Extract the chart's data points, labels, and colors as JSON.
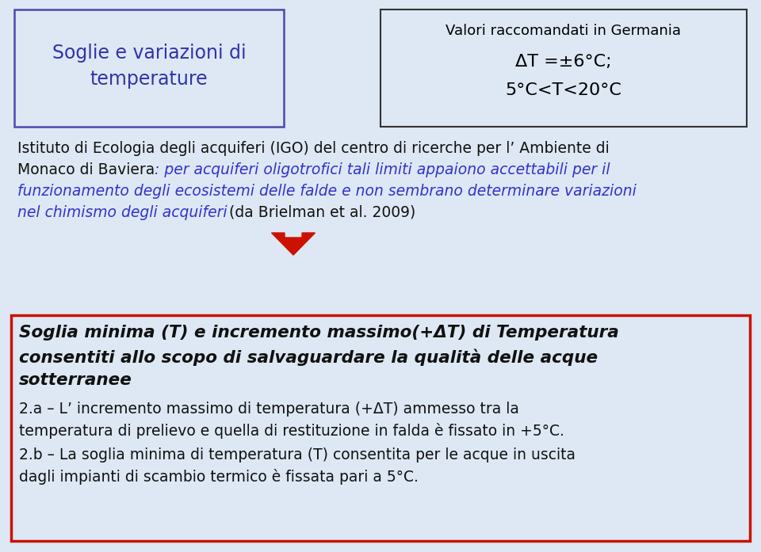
{
  "bg_color": "#dde8f4",
  "title_box_text": "Soglie e variazioni di\ntemperature",
  "title_box_border": "#4a4aaa",
  "title_box_text_color": "#3333aa",
  "right_box_line1": "Valori raccomandati in Germania",
  "right_box_line2": "ΔT =±6°C;",
  "right_box_line3": "5°C<T<20°C",
  "right_box_border": "#333333",
  "arrow_color": "#cc1100",
  "bottom_box_border": "#cc1100",
  "bottom_box_bg": "#dde8f4",
  "bottom_bold_line1": "Soglia minima (T) e incremento massimo(+ΔT) di Temperatura",
  "bottom_bold_line2": "consentiti allo scopo di salvaguardare la qualità delle acque",
  "bottom_bold_line3": "sotterranee",
  "text_2a_line1": "2.a – L’ incremento massimo di temperatura (+ΔT) ammesso tra la",
  "text_2a_line2": "temperatura di prelievo e quella di restituzione in falda è fissato in +5°C.",
  "text_2b_line1": "2.b – La soglia minima di temperatura (T) consentita per le acque in uscita",
  "text_2b_line2": "dagli impianti di scambio termico è fissata pari a 5°C."
}
